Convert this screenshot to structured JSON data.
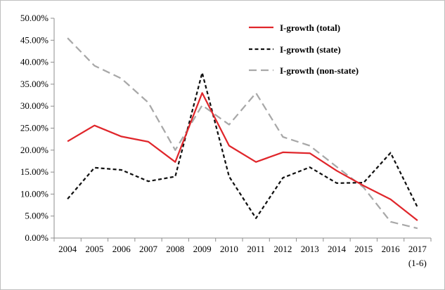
{
  "chart_data": {
    "type": "line",
    "title": "",
    "xlabel": "",
    "ylabel": "",
    "categories": [
      "2004",
      "2005",
      "2006",
      "2007",
      "2008",
      "2009",
      "2010",
      "2011",
      "2012",
      "2013",
      "2014",
      "2015",
      "2016",
      "2017"
    ],
    "category_sublabels": {
      "2017": "(1-6)"
    },
    "ylim": [
      0,
      50
    ],
    "yticks": [
      0,
      5,
      10,
      15,
      20,
      25,
      30,
      35,
      40,
      45,
      50
    ],
    "ytick_labels": [
      "0.00%",
      "5.00%",
      "10.00%",
      "15.00%",
      "20.00%",
      "25.00%",
      "30.00%",
      "35.00%",
      "40.00%",
      "45.00%",
      "50.00%"
    ],
    "grid": false,
    "legend_position": "top-right",
    "series": [
      {
        "name": "I-growth (total)",
        "color": "#e0262b",
        "style": "solid",
        "values": [
          22.0,
          25.6,
          23.1,
          21.9,
          17.3,
          33.0,
          21.0,
          17.3,
          19.5,
          19.3,
          15.3,
          11.9,
          8.8,
          4.0
        ]
      },
      {
        "name": "I-growth (state)",
        "color": "#111111",
        "style": "dashed",
        "values": [
          8.9,
          16.0,
          15.5,
          12.9,
          14.0,
          37.6,
          14.0,
          4.5,
          13.7,
          16.1,
          12.5,
          12.6,
          19.4,
          7.0
        ]
      },
      {
        "name": "I-growth (non-state)",
        "color": "#a8a8a8",
        "style": "dashed-long",
        "values": [
          45.5,
          39.2,
          36.3,
          30.8,
          20.0,
          30.2,
          25.8,
          33.0,
          23.0,
          21.0,
          16.2,
          11.5,
          3.7,
          2.2
        ]
      }
    ]
  }
}
